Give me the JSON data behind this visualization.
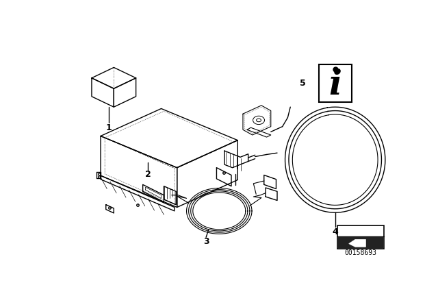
{
  "bg_color": "#ffffff",
  "line_color": "#000000",
  "fig_width": 6.4,
  "fig_height": 4.48,
  "dpi": 100,
  "part_number": "00158693"
}
